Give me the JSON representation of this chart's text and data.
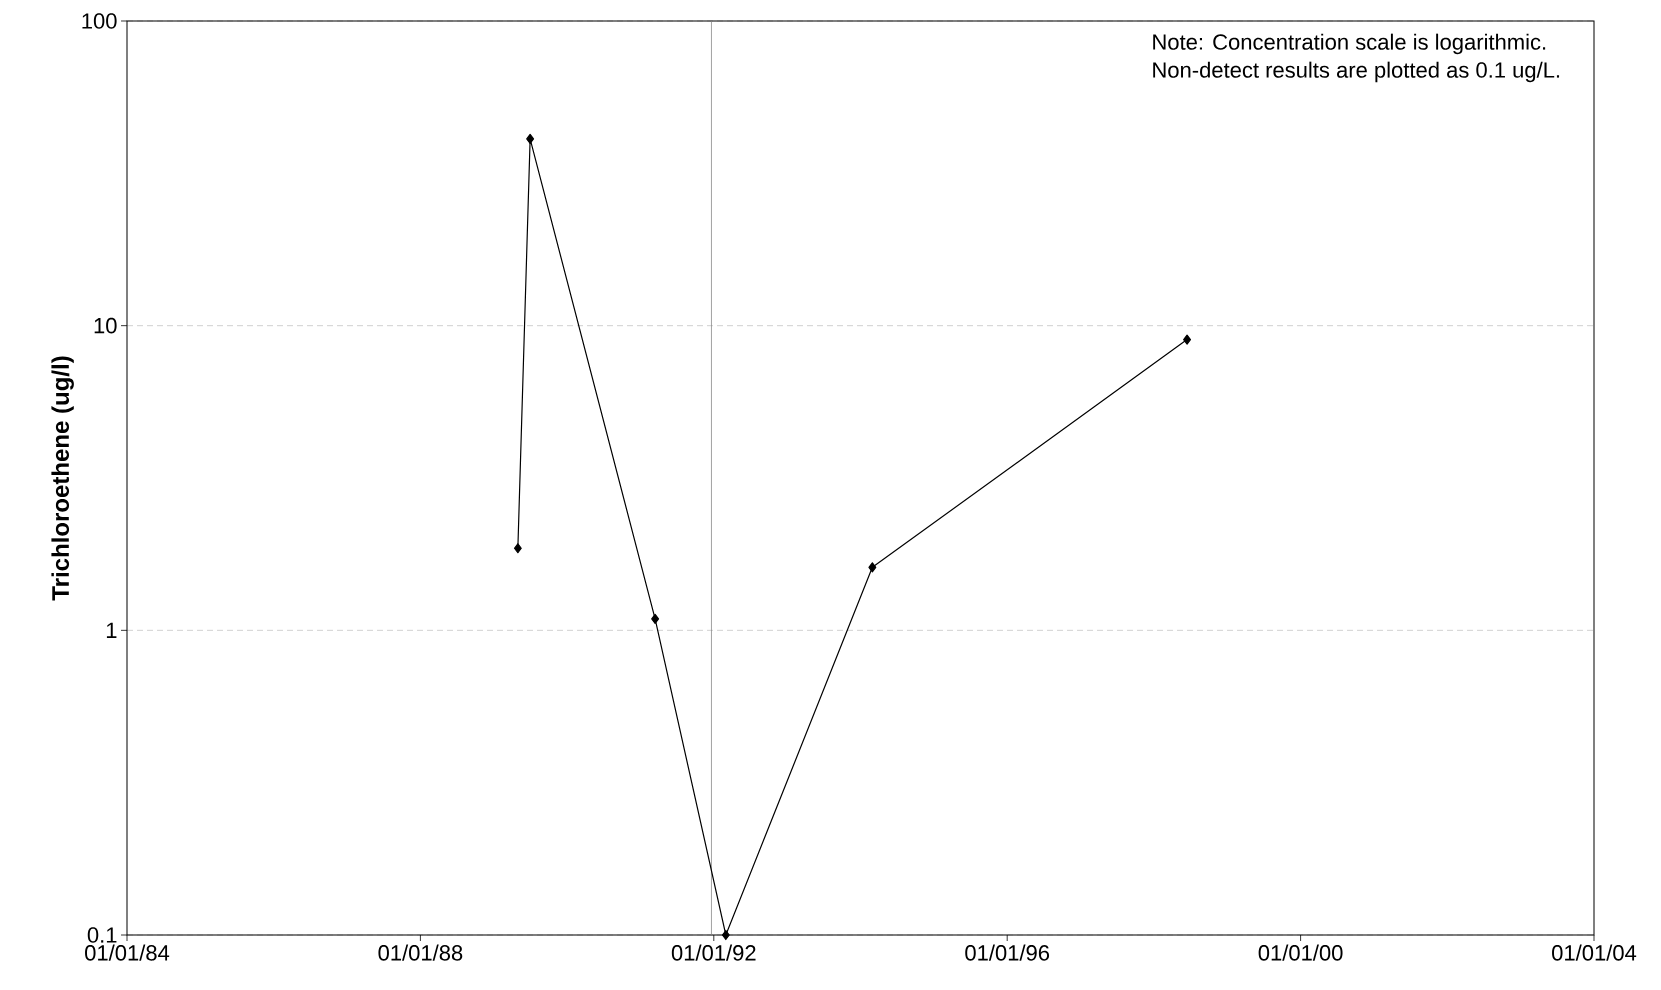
{
  "chart_data": {
    "type": "line",
    "ylabel": "Trichloroethene (ug/l)",
    "annotations": [
      "Note: Concentration scale is logarithmic.",
      "Non-detect results are plotted as 0.1 ug/L."
    ],
    "x": [
      "1989-05-01",
      "1989-07-01",
      "1991-03-15",
      "1992-03-01",
      "1994-03-01",
      "1998-06-15"
    ],
    "series": [
      {
        "color": "#000000",
        "values": [
          1.86,
          41,
          1.09,
          0.1,
          1.61,
          9
        ]
      }
    ],
    "xlim": [
      "1984-01-01",
      "2004-01-01"
    ],
    "xticks": [
      {
        "value": "1984-01-01",
        "label": "01/01/84"
      },
      {
        "value": "1988-01-01",
        "label": "01/01/88"
      },
      {
        "value": "1992-01-01",
        "label": "01/01/92"
      },
      {
        "value": "1996-01-01",
        "label": "01/01/96"
      },
      {
        "value": "2000-01-01",
        "label": "01/01/00"
      },
      {
        "value": "2004-01-01",
        "label": "01/01/04"
      }
    ],
    "ylim": [
      0.1,
      100
    ],
    "yticks": [
      0.1,
      1,
      10,
      100
    ],
    "log": "y",
    "grid": "y",
    "marker": "diamond",
    "line_style": "solid",
    "ref_lines": [
      {
        "axis": "x",
        "value": "1991-12-20",
        "color": "#808080"
      }
    ]
  }
}
